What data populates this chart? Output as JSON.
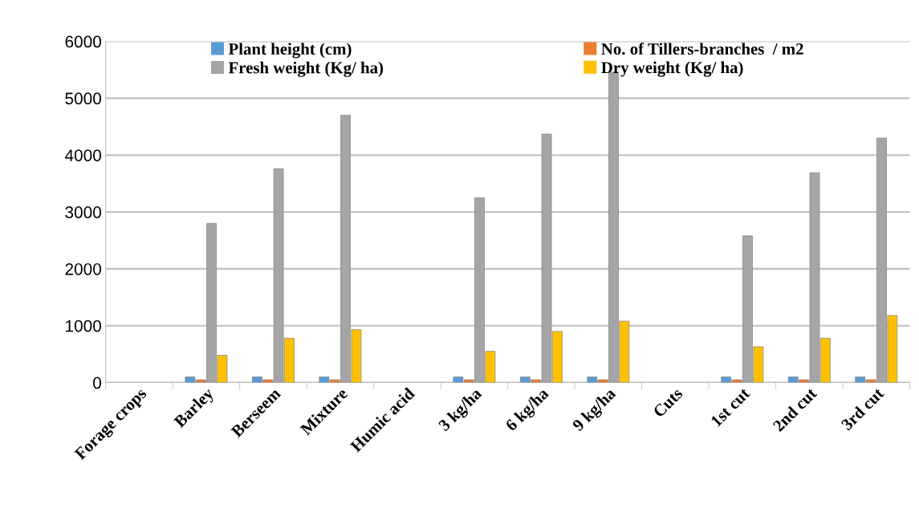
{
  "chart_data": {
    "type": "bar",
    "categories": [
      "Forage crops",
      "Barley",
      "Berseem",
      "Mixture",
      "Humic acid",
      "3 kg/ha",
      "6 kg/ha",
      "9 kg/ha",
      "Cuts",
      "1st cut",
      "2nd cut",
      "3rd cut"
    ],
    "series": [
      {
        "name": "Plant height (cm)",
        "color": "#5b9bd5",
        "values": [
          null,
          100,
          100,
          100,
          null,
          100,
          100,
          100,
          null,
          100,
          100,
          100
        ]
      },
      {
        "name": "No. of Tillers-branches  / m2",
        "color": "#ed7d31",
        "values": [
          null,
          50,
          50,
          50,
          null,
          50,
          50,
          50,
          null,
          50,
          50,
          50
        ]
      },
      {
        "name": "Fresh weight (Kg/ ha)",
        "color": "#a5a5a5",
        "values": [
          null,
          2800,
          3760,
          4700,
          null,
          3250,
          4370,
          5460,
          null,
          2580,
          3690,
          4300
        ]
      },
      {
        "name": "Dry weight (Kg/ ha)",
        "color": "#ffc000",
        "values": [
          null,
          480,
          780,
          930,
          null,
          550,
          900,
          1080,
          null,
          630,
          780,
          1180
        ]
      }
    ],
    "ylim": [
      0,
      6000
    ],
    "yticks": [
      0,
      1000,
      2000,
      3000,
      4000,
      5000,
      6000
    ],
    "grid": "y",
    "legend": "top"
  }
}
